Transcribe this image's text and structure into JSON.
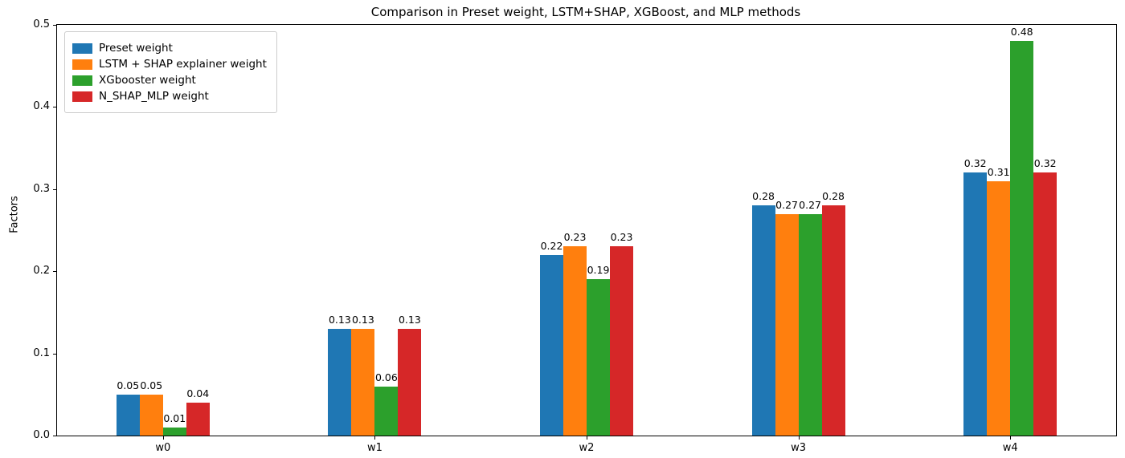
{
  "figure": {
    "title": "Comparison in Preset weight, LSTM+SHAP, XGBoost, and MLP methods",
    "ylabel": "Factors"
  },
  "chart_data": {
    "type": "bar",
    "title": "Comparison in Preset weight, LSTM+SHAP, XGBoost, and MLP methods",
    "xlabel": "",
    "ylabel": "Factors",
    "categories": [
      "w0",
      "w1",
      "w2",
      "w3",
      "w4"
    ],
    "series": [
      {
        "name": "Preset weight",
        "color": "#1f77b4",
        "values": [
          0.05,
          0.13,
          0.22,
          0.28,
          0.32
        ]
      },
      {
        "name": "LSTM + SHAP explainer weight",
        "color": "#ff7f0e",
        "values": [
          0.05,
          0.13,
          0.23,
          0.27,
          0.31
        ]
      },
      {
        "name": "XGbooster weight",
        "color": "#2ca02c",
        "values": [
          0.01,
          0.06,
          0.19,
          0.27,
          0.48
        ]
      },
      {
        "name": "N_SHAP_MLP weight",
        "color": "#d62728",
        "values": [
          0.04,
          0.13,
          0.23,
          0.28,
          0.32
        ]
      }
    ],
    "ylim": [
      0.0,
      0.5
    ],
    "yticks": [
      0.0,
      0.1,
      0.2,
      0.3,
      0.4,
      0.5
    ],
    "grid": false,
    "legend_position": "upper left",
    "bar_value_labels": true
  }
}
